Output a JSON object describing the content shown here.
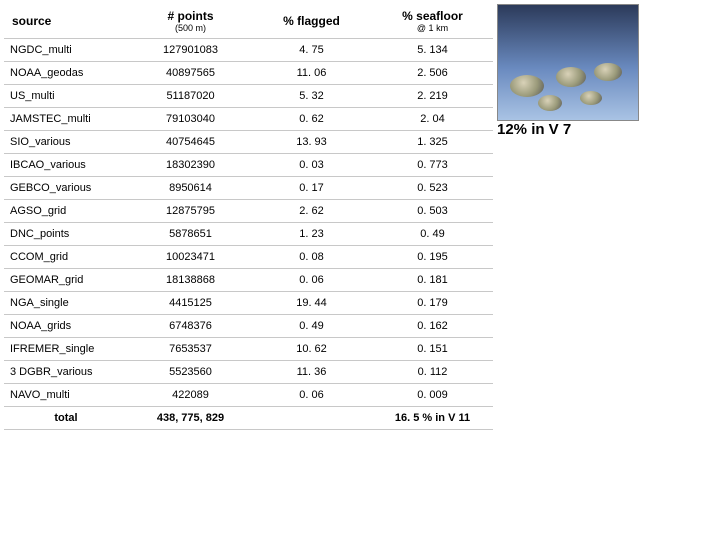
{
  "headers": {
    "source": "source",
    "points": "# points",
    "points_sub": "(500 m)",
    "flagged": "% flagged",
    "seafloor": "% seafloor",
    "seafloor_sub": "@ 1 km"
  },
  "rows": [
    {
      "source": "NGDC_multi",
      "points": "127901083",
      "flagged": "4. 75",
      "seafloor": "5. 134"
    },
    {
      "source": "NOAA_geodas",
      "points": "40897565",
      "flagged": "11. 06",
      "seafloor": "2. 506"
    },
    {
      "source": "US_multi",
      "points": "51187020",
      "flagged": "5. 32",
      "seafloor": "2. 219"
    },
    {
      "source": "JAMSTEC_multi",
      "points": "79103040",
      "flagged": "0. 62",
      "seafloor": "2. 04"
    },
    {
      "source": "SIO_various",
      "points": "40754645",
      "flagged": "13. 93",
      "seafloor": "1. 325"
    },
    {
      "source": "IBCAO_various",
      "points": "18302390",
      "flagged": "0. 03",
      "seafloor": "0. 773"
    },
    {
      "source": "GEBCO_various",
      "points": "8950614",
      "flagged": "0. 17",
      "seafloor": "0. 523"
    },
    {
      "source": "AGSO_grid",
      "points": "12875795",
      "flagged": "2. 62",
      "seafloor": "0. 503"
    },
    {
      "source": "DNC_points",
      "points": "5878651",
      "flagged": "1. 23",
      "seafloor": "0. 49"
    },
    {
      "source": "CCOM_grid",
      "points": "10023471",
      "flagged": "0. 08",
      "seafloor": "0. 195"
    },
    {
      "source": "GEOMAR_grid",
      "points": "18138868",
      "flagged": "0. 06",
      "seafloor": "0. 181"
    },
    {
      "source": "NGA_single",
      "points": "4415125",
      "flagged": "19. 44",
      "seafloor": "0. 179"
    },
    {
      "source": "NOAA_grids",
      "points": "6748376",
      "flagged": "0. 49",
      "seafloor": "0. 162"
    },
    {
      "source": "IFREMER_single",
      "points": "7653537",
      "flagged": "10. 62",
      "seafloor": "0. 151"
    },
    {
      "source": "3 DGBR_various",
      "points": "5523560",
      "flagged": "11. 36",
      "seafloor": "0. 112"
    },
    {
      "source": "NAVO_multi",
      "points": "422089",
      "flagged": "0. 06",
      "seafloor": "0. 009"
    }
  ],
  "total": {
    "label": "total",
    "points": "438, 775, 829",
    "seafloor": "16. 5 % in V 11"
  },
  "annotation": "12% in V 7"
}
